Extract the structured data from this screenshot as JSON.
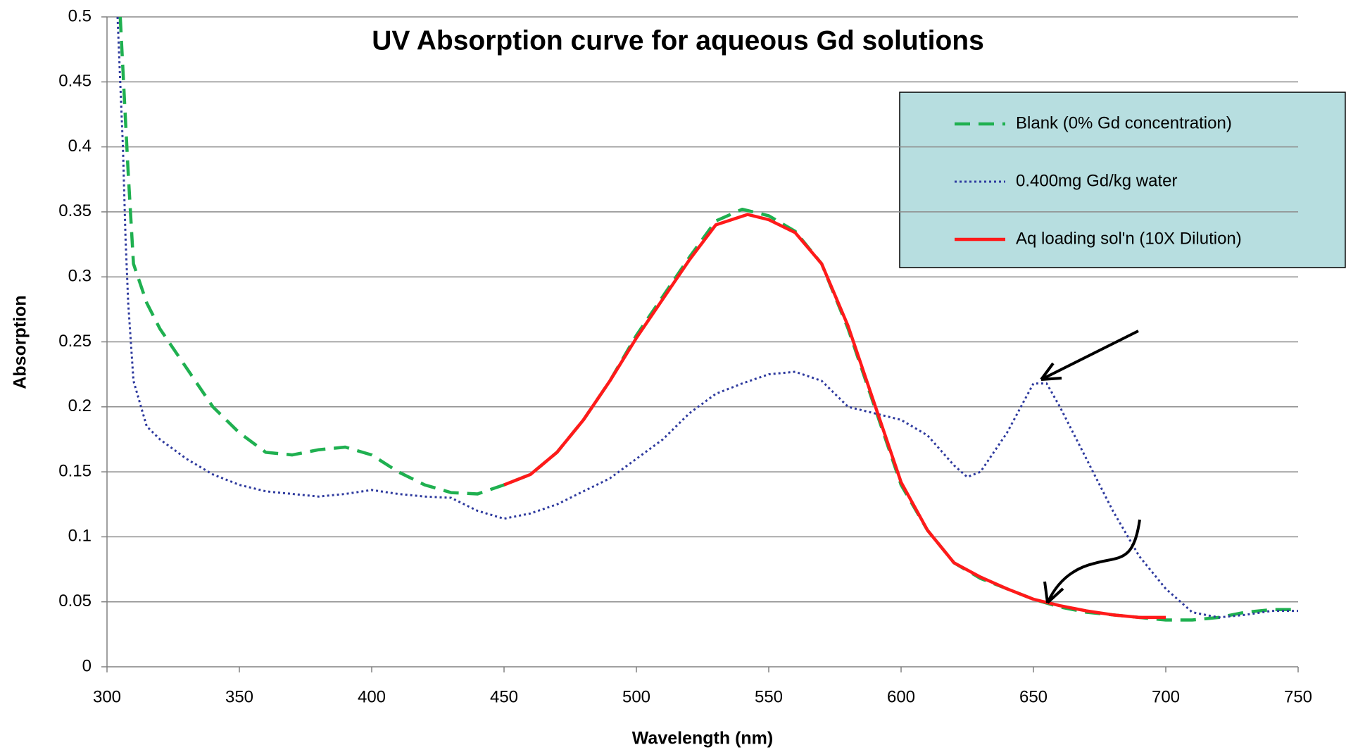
{
  "chart_data": {
    "type": "line",
    "title": "UV Absorption curve for aqueous Gd solutions",
    "xlabel": "Wavelength (nm)",
    "ylabel": "Absorption",
    "xlim": [
      300,
      750
    ],
    "xticks": [
      300,
      350,
      400,
      450,
      500,
      550,
      600,
      650,
      700,
      750
    ],
    "ylim": [
      0,
      0.5
    ],
    "yticks": [
      0,
      0.05,
      0.1,
      0.15,
      0.2,
      0.25,
      0.3,
      0.35,
      0.4,
      0.45,
      0.5
    ],
    "grid": true,
    "legend": "upper right",
    "series": [
      {
        "name": "Blank (0% Gd concentration)",
        "color": "#1fb050",
        "style": "dashed",
        "x": [
          305,
          307,
          308,
          310,
          315,
          320,
          330,
          340,
          350,
          360,
          370,
          380,
          390,
          400,
          410,
          420,
          430,
          440,
          450,
          460,
          470,
          480,
          490,
          500,
          510,
          520,
          530,
          540,
          550,
          560,
          570,
          580,
          590,
          600,
          610,
          620,
          630,
          640,
          650,
          660,
          670,
          680,
          690,
          700,
          710,
          720,
          730,
          740,
          750
        ],
        "values": [
          0.5,
          0.42,
          0.38,
          0.31,
          0.28,
          0.26,
          0.23,
          0.2,
          0.18,
          0.165,
          0.163,
          0.167,
          0.169,
          0.163,
          0.15,
          0.14,
          0.134,
          0.133,
          0.14,
          0.148,
          0.165,
          0.19,
          0.22,
          0.255,
          0.285,
          0.315,
          0.343,
          0.352,
          0.347,
          0.335,
          0.31,
          0.26,
          0.2,
          0.14,
          0.105,
          0.08,
          0.068,
          0.06,
          0.052,
          0.046,
          0.042,
          0.04,
          0.038,
          0.036,
          0.036,
          0.038,
          0.042,
          0.044,
          0.044
        ]
      },
      {
        "name": "0.400mg Gd/kg water",
        "color": "#2e3a9e",
        "style": "dotted",
        "x": [
          304,
          306,
          307,
          308,
          310,
          315,
          320,
          330,
          340,
          350,
          360,
          370,
          380,
          390,
          400,
          410,
          420,
          430,
          440,
          450,
          460,
          470,
          480,
          490,
          500,
          510,
          520,
          530,
          540,
          550,
          560,
          570,
          580,
          590,
          600,
          610,
          620,
          625,
          630,
          640,
          650,
          655,
          660,
          670,
          680,
          690,
          700,
          710,
          720,
          730,
          740,
          750
        ],
        "values": [
          0.5,
          0.4,
          0.33,
          0.28,
          0.22,
          0.185,
          0.175,
          0.16,
          0.148,
          0.14,
          0.135,
          0.133,
          0.131,
          0.133,
          0.136,
          0.133,
          0.131,
          0.13,
          0.12,
          0.114,
          0.118,
          0.125,
          0.135,
          0.145,
          0.16,
          0.175,
          0.195,
          0.21,
          0.218,
          0.225,
          0.227,
          0.22,
          0.2,
          0.195,
          0.19,
          0.178,
          0.155,
          0.146,
          0.15,
          0.18,
          0.218,
          0.218,
          0.2,
          0.16,
          0.12,
          0.085,
          0.06,
          0.042,
          0.038,
          0.04,
          0.043,
          0.043
        ]
      },
      {
        "name": "Aq loading sol'n (10X Dilution)",
        "color": "#ff1a1a",
        "style": "solid",
        "x": [
          450,
          460,
          470,
          480,
          490,
          500,
          510,
          520,
          530,
          542,
          550,
          560,
          570,
          580,
          590,
          600,
          610,
          620,
          630,
          640,
          650,
          660,
          670,
          680,
          690,
          700
        ],
        "values": [
          0.14,
          0.148,
          0.165,
          0.19,
          0.22,
          0.253,
          0.283,
          0.313,
          0.34,
          0.348,
          0.344,
          0.334,
          0.31,
          0.262,
          0.202,
          0.142,
          0.105,
          0.08,
          0.069,
          0.06,
          0.052,
          0.047,
          0.043,
          0.04,
          0.038,
          0.038
        ]
      }
    ]
  }
}
